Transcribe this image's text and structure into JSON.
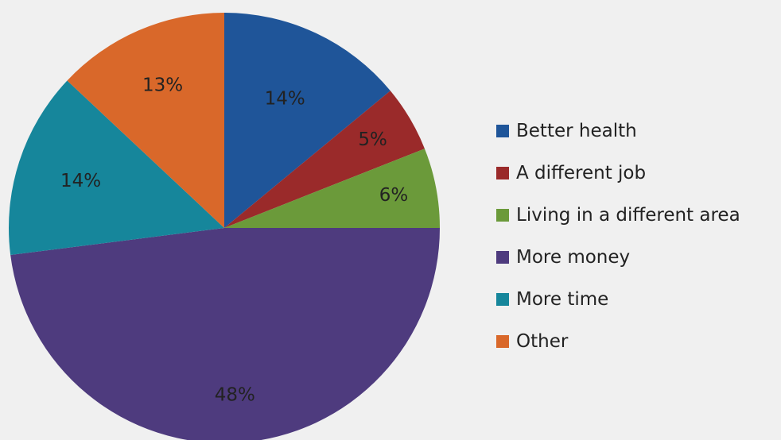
{
  "chart_data": {
    "type": "pie",
    "categories": [
      "Better health",
      "A different job",
      "Living in a different area",
      "More money",
      "More time",
      "Other"
    ],
    "values": [
      14,
      5,
      6,
      48,
      14,
      13
    ],
    "data_labels": [
      "14%",
      "5%",
      "6%",
      "48%",
      "14%",
      "13%"
    ],
    "colors": [
      "#1f5599",
      "#9a2a2a",
      "#6b9a3a",
      "#4e3b7e",
      "#16869b",
      "#d9682a"
    ],
    "start_angle_deg": 0,
    "direction": "clockwise",
    "legend_position": "right"
  }
}
